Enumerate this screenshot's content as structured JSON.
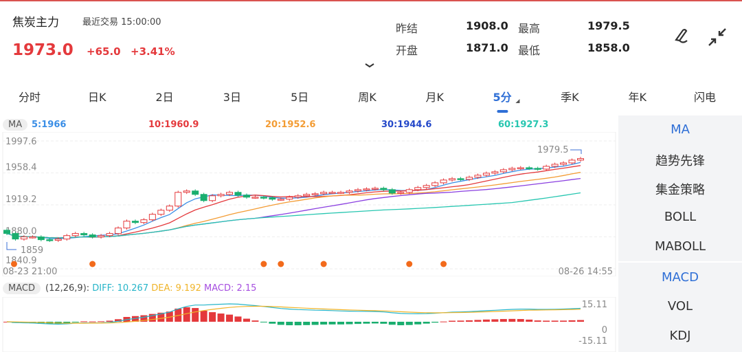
{
  "header": {
    "name": "焦炭主力",
    "trade_label": "最近交易",
    "trade_time": "15:00:00",
    "price": "1973.0",
    "change": "+65.0",
    "change_pct": "+3.41%",
    "quotes": [
      {
        "label": "昨结",
        "value": "1908.0"
      },
      {
        "label": "最高",
        "value": "1979.5"
      },
      {
        "label": "开盘",
        "value": "1871.0"
      },
      {
        "label": "最低",
        "value": "1858.0"
      }
    ],
    "icons": [
      "draw-pen-icon",
      "collapse-icon",
      "chevron-down-icon"
    ]
  },
  "tabs": [
    "分时",
    "日K",
    "2日",
    "3日",
    "5日",
    "周K",
    "月K",
    "5分",
    "季K",
    "年K",
    "闪电"
  ],
  "active_tab": "5分",
  "ma_bar": {
    "label": "MA",
    "items": [
      {
        "text": "5:1966",
        "color": "#3a8ee6"
      },
      {
        "text": "10:1960.9",
        "color": "#e4393c"
      },
      {
        "text": "20:1952.6",
        "color": "#f39c34"
      },
      {
        "text": "30:1944.6",
        "color": "#2448c9"
      },
      {
        "text": "60:1927.3",
        "color": "#26c6b0"
      }
    ]
  },
  "macd_bar": {
    "label": "MACD",
    "params": "(12,26,9):",
    "diff": "DIFF: 10.267",
    "dea": "DEA: 9.192",
    "macd": "MACD: 2.15"
  },
  "side_panel": {
    "main": [
      "MA",
      "趋势先锋",
      "集金策略",
      "BOLL",
      "MABOLL"
    ],
    "sub": [
      "MACD",
      "VOL",
      "KDJ"
    ],
    "active_main": "MA",
    "active_sub": "MACD"
  },
  "chart_data": {
    "type": "candlestick",
    "y_ticks": [
      "1997.6",
      "1958.4",
      "1919.2",
      "1880.0",
      "1840.9"
    ],
    "ylim": [
      1840.9,
      1997.6
    ],
    "x_start": "08-23 21:00",
    "x_end": "08-26 14:55",
    "high_label": "1979.5",
    "low_label": "1859",
    "closes": [
      1884.2,
      1877.4,
      1880,
      1880,
      1876.6,
      1875.8,
      1877.4,
      1881.6,
      1884.2,
      1882.5,
      1880,
      1881.6,
      1884.2,
      1890.9,
      1899.3,
      1897.6,
      1901,
      1907.7,
      1912.7,
      1917.8,
      1934.6,
      1936.3,
      1932.1,
      1924.5,
      1930.4,
      1932.1,
      1934.6,
      1931.2,
      1928.7,
      1928.7,
      1927.9,
      1926.2,
      1926.2,
      1928.7,
      1930.4,
      1932.1,
      1932.9,
      1934.6,
      1934.6,
      1934.6,
      1936.3,
      1937.9,
      1938.8,
      1939.6,
      1937.9,
      1933.7,
      1934.6,
      1937.9,
      1940.5,
      1943,
      1946.3,
      1949.7,
      1951.4,
      1950.5,
      1953.1,
      1955.6,
      1958.1,
      1959.8,
      1962.3,
      1964,
      1964.8,
      1964,
      1963.1,
      1966.5,
      1969,
      1970.7,
      1974.1,
      1976
    ],
    "signal_indices": [
      1,
      10,
      30,
      32,
      37,
      47,
      51
    ],
    "ma_periods": [
      5,
      10,
      20,
      30,
      60
    ],
    "macd_axis": [
      "15.11",
      "0",
      "-15.11"
    ],
    "colors": {
      "up": "#e4393c",
      "down": "#1aae6f",
      "signal": "#f26a1b",
      "diff": "#26b5c9",
      "dea": "#f0b429"
    }
  }
}
